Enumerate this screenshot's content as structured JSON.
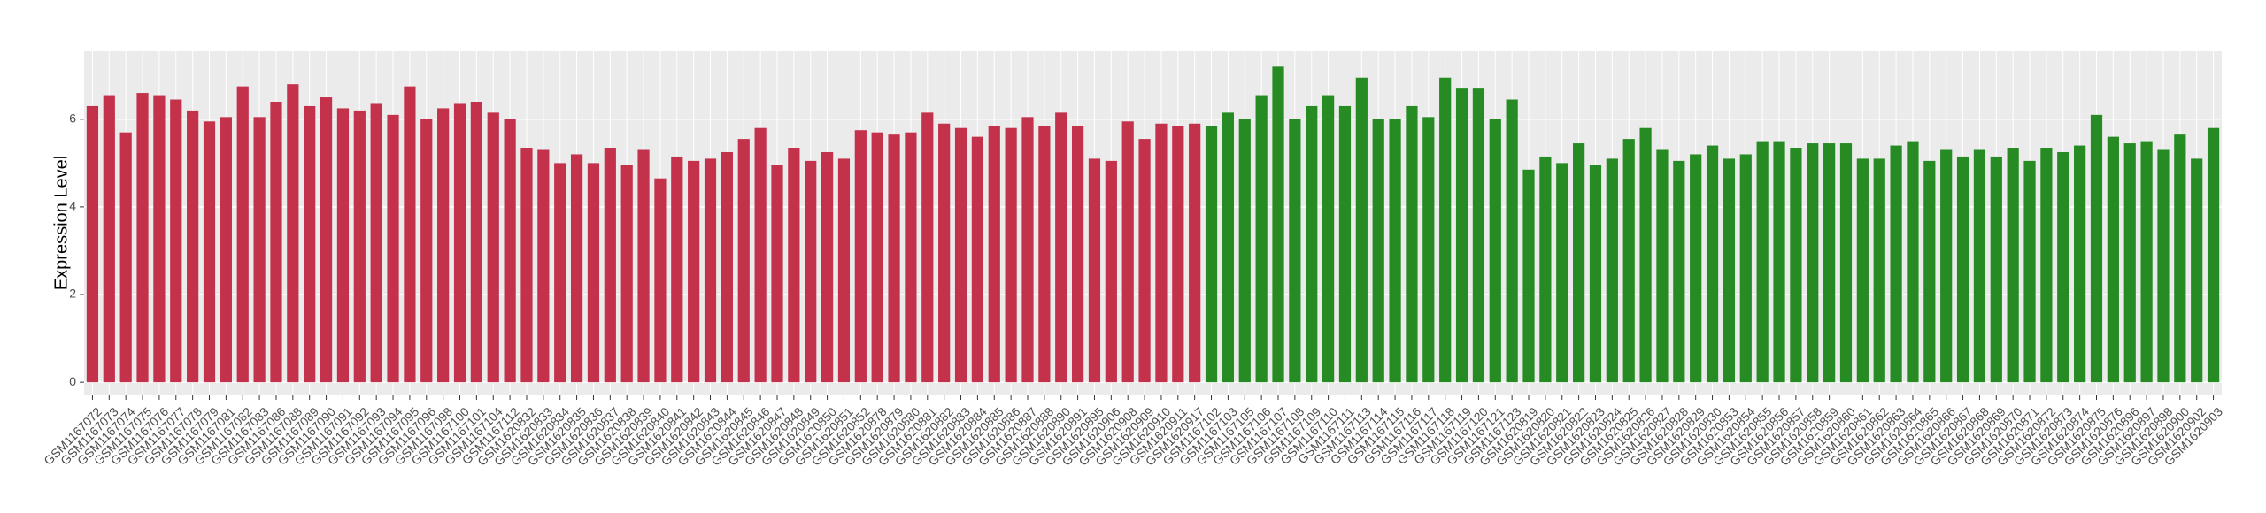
{
  "chart_data": {
    "type": "bar",
    "y_label": "Expression Level",
    "categories": [
      "GSM1167072",
      "GSM1167073",
      "GSM1167074",
      "GSM1167075",
      "GSM1167076",
      "GSM1167077",
      "GSM1167078",
      "GSM1167079",
      "GSM1167081",
      "GSM1167082",
      "GSM1167083",
      "GSM1167086",
      "GSM1167088",
      "GSM1167089",
      "GSM1167090",
      "GSM1167091",
      "GSM1167092",
      "GSM1167093",
      "GSM1167094",
      "GSM1167095",
      "GSM1167096",
      "GSM1167098",
      "GSM1167100",
      "GSM1167101",
      "GSM1167104",
      "GSM1167112",
      "GSM1620832",
      "GSM1620833",
      "GSM1620834",
      "GSM1620835",
      "GSM1620836",
      "GSM1620837",
      "GSM1620838",
      "GSM1620839",
      "GSM1620840",
      "GSM1620841",
      "GSM1620842",
      "GSM1620843",
      "GSM1620844",
      "GSM1620845",
      "GSM1620846",
      "GSM1620847",
      "GSM1620848",
      "GSM1620849",
      "GSM1620850",
      "GSM1620851",
      "GSM1620852",
      "GSM1620878",
      "GSM1620879",
      "GSM1620880",
      "GSM1620881",
      "GSM1620882",
      "GSM1620883",
      "GSM1620884",
      "GSM1620885",
      "GSM1620886",
      "GSM1620887",
      "GSM1620888",
      "GSM1620890",
      "GSM1620891",
      "GSM1620895",
      "GSM1620906",
      "GSM1620908",
      "GSM1620909",
      "GSM1620910",
      "GSM1620911",
      "GSM1620917",
      "GSM1167102",
      "GSM1167103",
      "GSM1167105",
      "GSM1167106",
      "GSM1167107",
      "GSM1167108",
      "GSM1167109",
      "GSM1167110",
      "GSM1167111",
      "GSM1167113",
      "GSM1167114",
      "GSM1167115",
      "GSM1167116",
      "GSM1167117",
      "GSM1167118",
      "GSM1167119",
      "GSM1167120",
      "GSM1167121",
      "GSM1167123",
      "GSM1620819",
      "GSM1620820",
      "GSM1620821",
      "GSM1620822",
      "GSM1620823",
      "GSM1620824",
      "GSM1620825",
      "GSM1620826",
      "GSM1620827",
      "GSM1620828",
      "GSM1620829",
      "GSM1620830",
      "GSM1620853",
      "GSM1620854",
      "GSM1620855",
      "GSM1620856",
      "GSM1620857",
      "GSM1620858",
      "GSM1620859",
      "GSM1620860",
      "GSM1620861",
      "GSM1620862",
      "GSM1620863",
      "GSM1620864",
      "GSM1620865",
      "GSM1620866",
      "GSM1620867",
      "GSM1620868",
      "GSM1620869",
      "GSM1620870",
      "GSM1620871",
      "GSM1620872",
      "GSM1620873",
      "GSM1620874",
      "GSM1620875",
      "GSM1620876",
      "GSM1620896",
      "GSM1620897",
      "GSM1620898",
      "GSM1620900",
      "GSM1620902",
      "GSM1620903"
    ],
    "values": [
      6.3,
      6.55,
      5.7,
      6.6,
      6.55,
      6.45,
      6.2,
      5.95,
      6.05,
      6.75,
      6.05,
      6.4,
      6.8,
      6.3,
      6.5,
      6.25,
      6.2,
      6.35,
      6.1,
      6.75,
      6.0,
      6.25,
      6.35,
      6.4,
      6.15,
      6.0,
      5.35,
      5.3,
      5.0,
      5.2,
      5.0,
      5.35,
      4.95,
      5.3,
      4.65,
      5.15,
      5.05,
      5.1,
      5.25,
      5.55,
      5.8,
      4.95,
      5.35,
      5.05,
      5.25,
      5.1,
      5.75,
      5.7,
      5.65,
      5.7,
      6.15,
      5.9,
      5.8,
      5.6,
      5.85,
      5.8,
      6.05,
      5.85,
      6.15,
      5.85,
      5.1,
      5.05,
      5.95,
      5.55,
      5.9,
      5.85,
      5.9,
      5.85,
      6.15,
      6.0,
      6.55,
      7.2,
      6.0,
      6.3,
      6.55,
      6.3,
      6.95,
      6.0,
      6.0,
      6.3,
      6.05,
      6.95,
      6.7,
      6.7,
      6.0,
      6.45,
      4.85,
      5.15,
      5.0,
      5.45,
      4.95,
      5.1,
      5.55,
      5.8,
      5.3,
      5.05,
      5.2,
      5.4,
      5.1,
      5.2,
      5.5,
      5.5,
      5.35,
      5.45,
      5.45,
      5.45,
      5.1,
      5.1,
      5.4,
      5.5,
      5.05,
      5.3,
      5.15,
      5.3,
      5.15,
      5.35,
      5.05,
      5.35,
      5.25,
      5.4,
      6.1,
      5.6,
      5.45,
      5.5,
      5.3,
      5.65,
      5.1,
      5.8
    ],
    "colors": [
      "#c4314b",
      "#c4314b",
      "#c4314b",
      "#c4314b",
      "#c4314b",
      "#c4314b",
      "#c4314b",
      "#c4314b",
      "#c4314b",
      "#c4314b",
      "#c4314b",
      "#c4314b",
      "#c4314b",
      "#c4314b",
      "#c4314b",
      "#c4314b",
      "#c4314b",
      "#c4314b",
      "#c4314b",
      "#c4314b",
      "#c4314b",
      "#c4314b",
      "#c4314b",
      "#c4314b",
      "#c4314b",
      "#c4314b",
      "#c4314b",
      "#c4314b",
      "#c4314b",
      "#c4314b",
      "#c4314b",
      "#c4314b",
      "#c4314b",
      "#c4314b",
      "#c4314b",
      "#c4314b",
      "#c4314b",
      "#c4314b",
      "#c4314b",
      "#c4314b",
      "#c4314b",
      "#c4314b",
      "#c4314b",
      "#c4314b",
      "#c4314b",
      "#c4314b",
      "#c4314b",
      "#c4314b",
      "#c4314b",
      "#c4314b",
      "#c4314b",
      "#c4314b",
      "#c4314b",
      "#c4314b",
      "#c4314b",
      "#c4314b",
      "#c4314b",
      "#c4314b",
      "#c4314b",
      "#c4314b",
      "#c4314b",
      "#c4314b",
      "#c4314b",
      "#c4314b",
      "#c4314b",
      "#c4314b",
      "#c4314b",
      "#258b22",
      "#258b22",
      "#258b22",
      "#258b22",
      "#258b22",
      "#258b22",
      "#258b22",
      "#258b22",
      "#258b22",
      "#258b22",
      "#258b22",
      "#258b22",
      "#258b22",
      "#258b22",
      "#258b22",
      "#258b22",
      "#258b22",
      "#258b22",
      "#258b22",
      "#258b22",
      "#258b22",
      "#258b22",
      "#258b22",
      "#258b22",
      "#258b22",
      "#258b22",
      "#258b22",
      "#258b22",
      "#258b22",
      "#258b22",
      "#258b22",
      "#258b22",
      "#258b22",
      "#258b22",
      "#258b22",
      "#258b22",
      "#258b22",
      "#258b22",
      "#258b22",
      "#258b22",
      "#258b22",
      "#258b22",
      "#258b22",
      "#258b22",
      "#258b22",
      "#258b22",
      "#258b22",
      "#258b22",
      "#258b22",
      "#258b22",
      "#258b22",
      "#258b22",
      "#258b22",
      "#258b22",
      "#258b22",
      "#258b22",
      "#258b22",
      "#258b22",
      "#258b22",
      "#258b22",
      "#258b22"
    ],
    "ylim": [
      -0.3,
      7.55
    ],
    "yticks": [
      0,
      2,
      4,
      6
    ],
    "grid": true
  }
}
